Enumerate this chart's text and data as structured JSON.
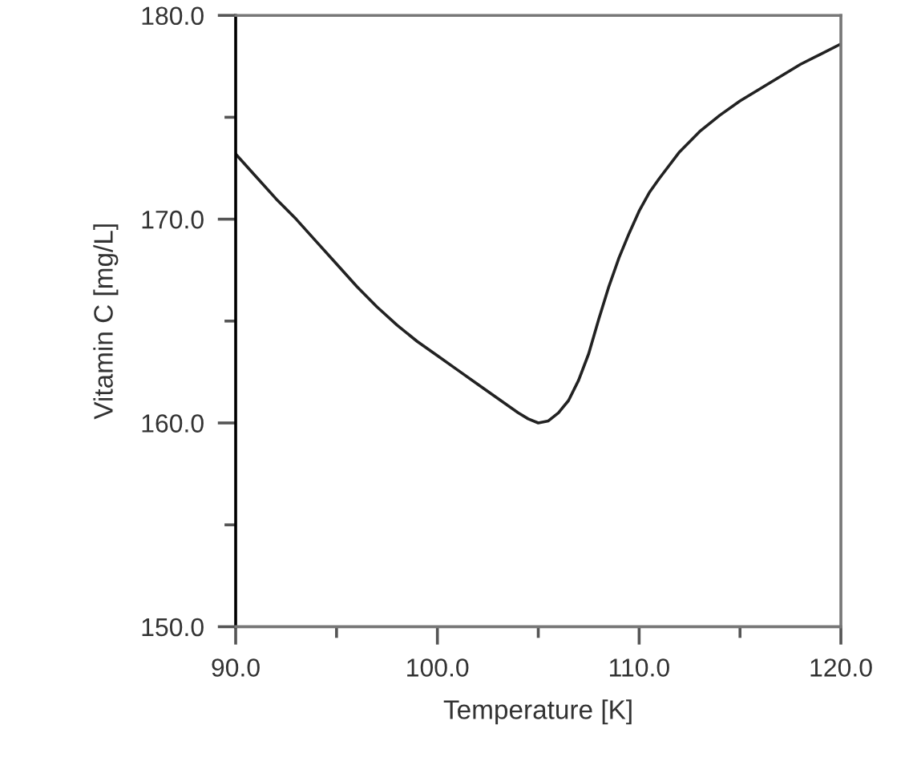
{
  "chart_data": {
    "type": "line",
    "xlabel": "Temperature [K]",
    "ylabel": "Vitamin C [mg/L]",
    "x": [
      90,
      91,
      92,
      93,
      94,
      95,
      96,
      97,
      98,
      99,
      100,
      101,
      102,
      103,
      104,
      104.5,
      105,
      105.5,
      106,
      106.5,
      107,
      107.5,
      108,
      108.5,
      109,
      109.5,
      110,
      110.5,
      111,
      112,
      113,
      114,
      115,
      116,
      117,
      118,
      119,
      120
    ],
    "series": [
      {
        "color": "#222222",
        "values": [
          173.2,
          172.1,
          171.0,
          170.0,
          168.9,
          167.8,
          166.7,
          165.7,
          164.8,
          164.0,
          163.3,
          162.6,
          161.9,
          161.2,
          160.5,
          160.2,
          160.0,
          160.1,
          160.5,
          161.1,
          162.1,
          163.4,
          165.1,
          166.7,
          168.1,
          169.3,
          170.4,
          171.3,
          172.0,
          173.3,
          174.3,
          175.1,
          175.8,
          176.4,
          177.0,
          177.6,
          178.1,
          178.6
        ]
      }
    ],
    "xlim": [
      90,
      120
    ],
    "ylim": [
      150,
      180
    ],
    "xticks": [
      {
        "value": 90,
        "label": "90.0"
      },
      {
        "value": 95,
        "label": null
      },
      {
        "value": 100,
        "label": "100.0"
      },
      {
        "value": 105,
        "label": null
      },
      {
        "value": 110,
        "label": "110.0"
      },
      {
        "value": 115,
        "label": null
      },
      {
        "value": 120,
        "label": "120.0"
      }
    ],
    "yticks": [
      {
        "value": 150,
        "label": "150.0"
      },
      {
        "value": 155,
        "label": null
      },
      {
        "value": 160,
        "label": "160.0"
      },
      {
        "value": 165,
        "label": null
      },
      {
        "value": 170,
        "label": "170.0"
      },
      {
        "value": 175,
        "label": null
      },
      {
        "value": 180,
        "label": "180.0"
      }
    ],
    "grid": false,
    "line_style": "solid",
    "marker": "none"
  }
}
